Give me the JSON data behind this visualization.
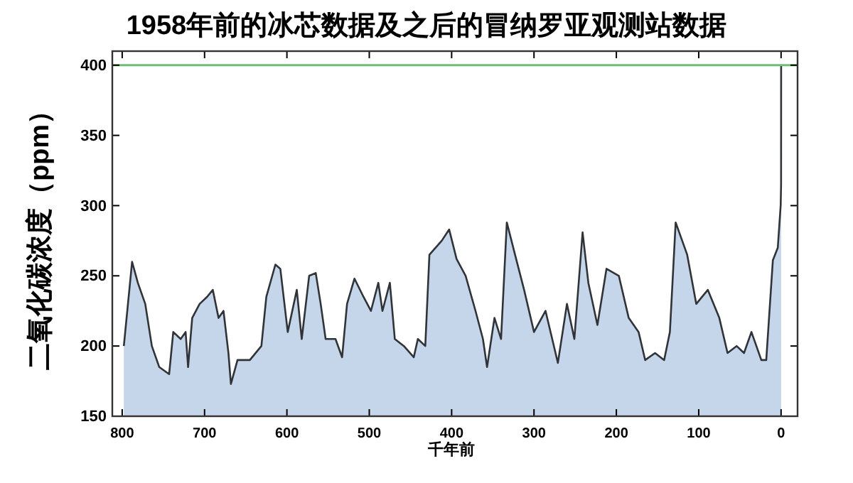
{
  "chart_data": {
    "type": "area",
    "title": "1958年前的冰芯数据及之后的冒纳罗亚观测站数据",
    "xlabel": "千年前",
    "ylabel": "二氧化碳浓度（ppm）",
    "x": [
      798,
      788,
      781,
      772,
      764,
      755,
      743,
      738,
      729,
      723,
      720,
      715,
      706,
      697,
      690,
      683,
      677,
      671,
      668,
      660,
      645,
      631,
      625,
      614,
      608,
      599,
      588,
      582,
      573,
      565,
      559,
      553,
      541,
      533,
      527,
      518,
      507,
      498,
      489,
      484,
      475,
      469,
      458,
      446,
      441,
      432,
      427,
      412,
      403,
      394,
      383,
      371,
      362,
      357,
      348,
      340,
      333,
      323,
      312,
      300,
      286,
      271,
      260,
      251,
      241,
      234,
      223,
      212,
      197,
      185,
      173,
      165,
      153,
      142,
      135,
      128,
      114,
      103,
      89,
      75,
      65,
      54,
      45,
      36,
      24,
      18,
      10,
      4,
      0.5,
      0,
      -0.06
    ],
    "series": [
      {
        "color": "#c6d6ea",
        "values": [
          200,
          260,
          245,
          230,
          200,
          185,
          180,
          210,
          205,
          210,
          185,
          220,
          230,
          235,
          240,
          220,
          225,
          195,
          173,
          190,
          190,
          200,
          235,
          258,
          255,
          210,
          240,
          205,
          250,
          252,
          230,
          205,
          205,
          192,
          230,
          248,
          235,
          225,
          245,
          225,
          245,
          205,
          200,
          192,
          205,
          200,
          265,
          275,
          283,
          262,
          250,
          225,
          205,
          185,
          220,
          205,
          288,
          265,
          240,
          210,
          225,
          188,
          230,
          205,
          281,
          245,
          215,
          255,
          250,
          220,
          210,
          190,
          195,
          190,
          210,
          288,
          265,
          230,
          240,
          220,
          195,
          200,
          195,
          210,
          190,
          190,
          261,
          270,
          300,
          315,
          400
        ]
      }
    ],
    "xlim": [
      812,
      -20
    ],
    "xticks": [
      800,
      700,
      600,
      500,
      400,
      300,
      200,
      100,
      0
    ],
    "ylim": [
      150,
      410
    ],
    "yticks": [
      150,
      200,
      250,
      300,
      350,
      400
    ],
    "ref_lines": [
      {
        "axis": "y",
        "value": 400,
        "color": "#6cbf73"
      }
    ],
    "grid": false
  }
}
